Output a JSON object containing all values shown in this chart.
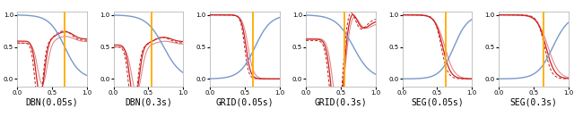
{
  "subplot_titles": [
    "DBN(0.05s)",
    "DBN(0.3s)",
    "GRID(0.05s)",
    "GRID(0.3s)",
    "SEG(0.05s)",
    "SEG(0.3s)"
  ],
  "orange_line_x": [
    0.68,
    0.55,
    0.62,
    0.55,
    0.63,
    0.65
  ],
  "xlim": [
    0,
    1
  ],
  "ylim": [
    -0.12,
    1.05
  ],
  "blue_color": "#7799cc",
  "red_dark_color": "#cc2222",
  "red_light_color": "#dd7777",
  "red_xdark_color": "#aa1111",
  "orange_color": "#ffaa00",
  "bg_color": "#ffffff",
  "title_fontsize": 7,
  "tick_fontsize": 5,
  "lw_blue": 1.0,
  "lw_red": 0.9
}
